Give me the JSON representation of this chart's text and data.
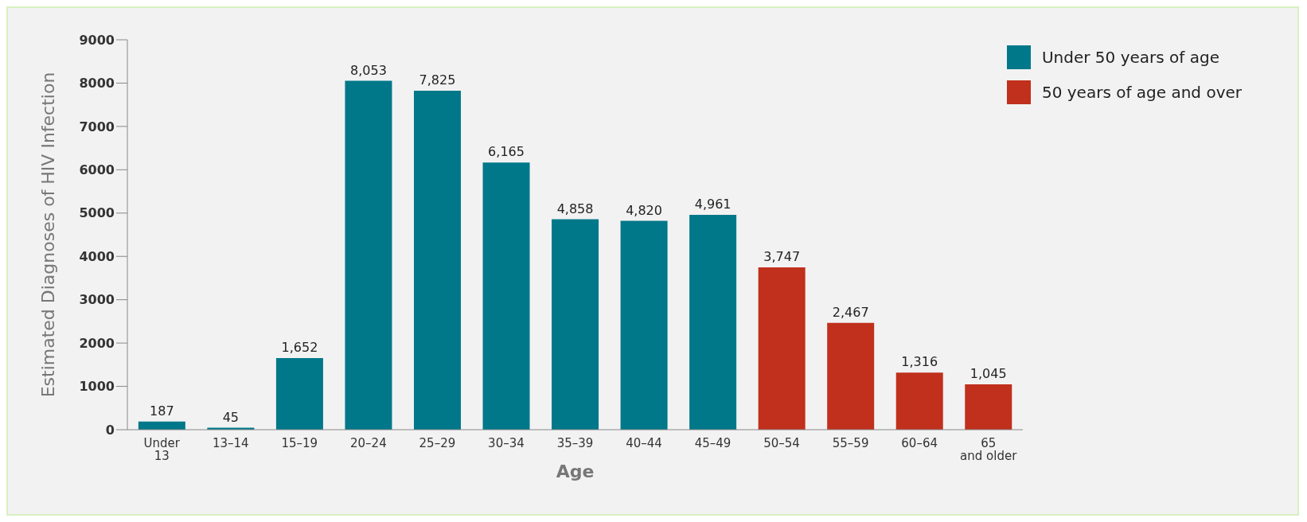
{
  "chart_data": {
    "type": "bar",
    "xlabel": "Age",
    "ylabel": "Estimated Diagnoses of HIV Infection",
    "categories": [
      "Under 13",
      "13–14",
      "15–19",
      "20–24",
      "25–29",
      "30–34",
      "35–39",
      "40–44",
      "45–49",
      "50–54",
      "55–59",
      "60–64",
      "65 and older"
    ],
    "stacked": true,
    "series": [
      {
        "name": "Under 50 years of age",
        "color": "#00788a",
        "values": [
          187,
          45,
          1652,
          8053,
          7825,
          6165,
          4858,
          4820,
          4961,
          null,
          null,
          null,
          null
        ],
        "value_labels": [
          "187",
          "45",
          "1,652",
          "8,053",
          "7,825",
          "6,165",
          "4,858",
          "4,820",
          "4,961",
          null,
          null,
          null,
          null
        ]
      },
      {
        "name": "50 years of age and over",
        "color": "#c0301c",
        "values": [
          null,
          null,
          null,
          null,
          null,
          null,
          null,
          null,
          null,
          3747,
          2467,
          1316,
          1045
        ],
        "value_labels": [
          null,
          null,
          null,
          null,
          null,
          null,
          null,
          null,
          null,
          "3,747",
          "2,467",
          "1,316",
          "1,045"
        ]
      }
    ],
    "ylim": [
      0,
      9000
    ],
    "yticks": [
      0,
      1000,
      2000,
      3000,
      4000,
      5000,
      6000,
      7000,
      8000,
      9000
    ],
    "grid": false,
    "legend": "top right"
  }
}
